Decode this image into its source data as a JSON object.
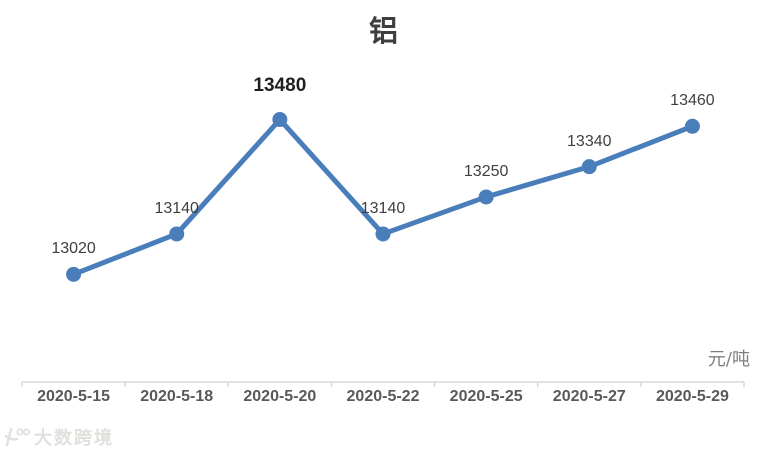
{
  "watermark": {
    "text": "大数跨境"
  },
  "chart_data": {
    "type": "line",
    "title": "铝",
    "unit_label": "元/吨",
    "categories": [
      "2020-5-15",
      "2020-5-18",
      "2020-5-20",
      "2020-5-22",
      "2020-5-25",
      "2020-5-27",
      "2020-5-29"
    ],
    "series": [
      {
        "name": "铝",
        "values": [
          13020,
          13140,
          13480,
          13140,
          13250,
          13340,
          13460
        ]
      }
    ],
    "data_labels": [
      "13020",
      "13140",
      "13480",
      "13140",
      "13250",
      "13340",
      "13460"
    ],
    "emphasized_label_index": 2,
    "xlabel": "",
    "ylabel": "",
    "ylim": [
      12700,
      13550
    ],
    "grid": false,
    "legend": "none",
    "line_color": "#4a7ebb",
    "marker_color": "#4a7ebb",
    "axis_color": "#d9d9d9",
    "label_color": "#404040",
    "axis_label_color": "#595959"
  }
}
